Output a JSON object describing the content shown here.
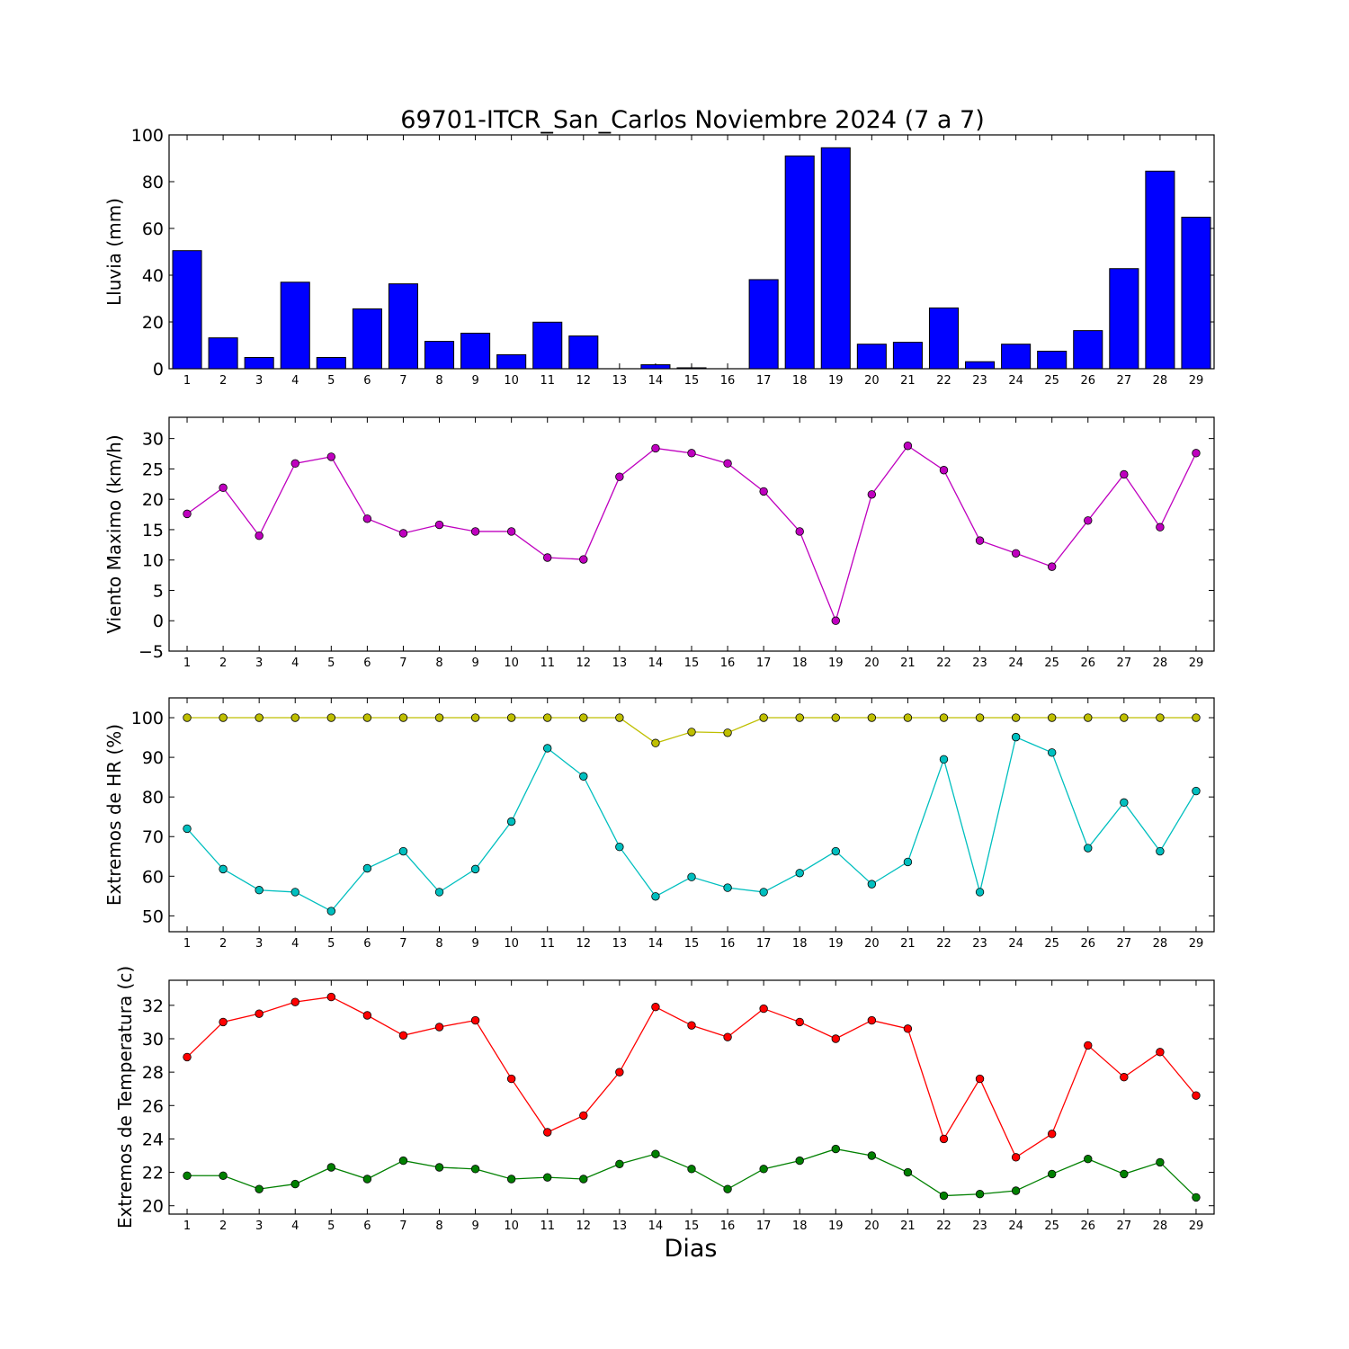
{
  "title": "69701-ITCR_San_Carlos Noviembre 2024  (7 a 7)",
  "xlabel": "Dias",
  "days": [
    1,
    2,
    3,
    4,
    5,
    6,
    7,
    8,
    9,
    10,
    11,
    12,
    13,
    14,
    15,
    16,
    17,
    18,
    19,
    20,
    21,
    22,
    23,
    24,
    25,
    26,
    27,
    28,
    29
  ],
  "chart_data": [
    {
      "type": "bar",
      "ylabel": "Lluvia (mm)",
      "ylim": [
        0,
        100
      ],
      "yticks": [
        0,
        20,
        40,
        60,
        80,
        100
      ],
      "categories": [
        1,
        2,
        3,
        4,
        5,
        6,
        7,
        8,
        9,
        10,
        11,
        12,
        13,
        14,
        15,
        16,
        17,
        18,
        19,
        20,
        21,
        22,
        23,
        24,
        25,
        26,
        27,
        28,
        29
      ],
      "series": [
        {
          "color": "#0000ff",
          "values": [
            50.5,
            13.2,
            4.8,
            37.0,
            4.8,
            25.6,
            36.3,
            11.7,
            15.2,
            6.0,
            19.9,
            14.0,
            0.0,
            1.7,
            0.4,
            0.0,
            38.1,
            91.0,
            94.5,
            10.5,
            11.3,
            26.0,
            3.0,
            10.5,
            7.5,
            16.3,
            42.8,
            84.5,
            64.8
          ]
        }
      ]
    },
    {
      "type": "line",
      "ylabel": "Viento Maximo (km/h)",
      "ylim": [
        -5,
        33.5
      ],
      "yticks": [
        -5,
        0,
        5,
        10,
        15,
        20,
        25,
        30
      ],
      "x": [
        1,
        2,
        3,
        4,
        5,
        6,
        7,
        8,
        9,
        10,
        11,
        12,
        13,
        14,
        15,
        16,
        17,
        18,
        19,
        20,
        21,
        22,
        23,
        24,
        25,
        26,
        27,
        28,
        29
      ],
      "series": [
        {
          "color": "#bf00bf",
          "values": [
            17.6,
            21.9,
            14.0,
            25.9,
            27.0,
            16.8,
            14.4,
            15.8,
            14.7,
            14.7,
            10.4,
            10.1,
            23.7,
            28.4,
            27.6,
            25.9,
            21.3,
            14.7,
            0.0,
            20.8,
            28.8,
            24.8,
            13.2,
            11.1,
            8.9,
            16.5,
            24.1,
            15.4,
            27.6
          ]
        }
      ]
    },
    {
      "type": "line",
      "ylabel": "Extremos de HR (%)",
      "ylim": [
        46,
        105
      ],
      "yticks": [
        50,
        60,
        70,
        80,
        90,
        100
      ],
      "x": [
        1,
        2,
        3,
        4,
        5,
        6,
        7,
        8,
        9,
        10,
        11,
        12,
        13,
        14,
        15,
        16,
        17,
        18,
        19,
        20,
        21,
        22,
        23,
        24,
        25,
        26,
        27,
        28,
        29
      ],
      "series": [
        {
          "color": "#bfbf00",
          "values": [
            100,
            100,
            100,
            100,
            100,
            100,
            100,
            100,
            100,
            100,
            100,
            100,
            100,
            93.6,
            96.4,
            96.2,
            100,
            100,
            100,
            100,
            100,
            100,
            100,
            100,
            100,
            100,
            100,
            100,
            100
          ]
        },
        {
          "color": "#00bfbf",
          "values": [
            72.0,
            61.8,
            56.5,
            56.0,
            51.2,
            62.0,
            66.3,
            56.0,
            61.8,
            73.8,
            92.3,
            85.2,
            67.4,
            54.9,
            59.8,
            57.1,
            56.0,
            60.8,
            66.3,
            58.0,
            63.6,
            89.5,
            56.0,
            95.1,
            91.2,
            67.1,
            78.6,
            66.3,
            81.5
          ]
        }
      ]
    },
    {
      "type": "line",
      "ylabel": "Extremos de Temperatura (c)",
      "ylim": [
        19.5,
        33.5
      ],
      "yticks": [
        20,
        22,
        24,
        26,
        28,
        30,
        32
      ],
      "x": [
        1,
        2,
        3,
        4,
        5,
        6,
        7,
        8,
        9,
        10,
        11,
        12,
        13,
        14,
        15,
        16,
        17,
        18,
        19,
        20,
        21,
        22,
        23,
        24,
        25,
        26,
        27,
        28,
        29
      ],
      "series": [
        {
          "color": "#ff0000",
          "values": [
            28.9,
            31.0,
            31.5,
            32.2,
            32.5,
            31.4,
            30.2,
            30.7,
            31.1,
            27.6,
            24.4,
            25.4,
            28.0,
            31.9,
            30.8,
            30.1,
            31.8,
            31.0,
            30.0,
            31.1,
            30.6,
            24.0,
            27.6,
            22.9,
            24.3,
            29.6,
            27.7,
            29.2,
            26.6
          ]
        },
        {
          "color": "#008000",
          "values": [
            21.8,
            21.8,
            21.0,
            21.3,
            22.3,
            21.6,
            22.7,
            22.3,
            22.2,
            21.6,
            21.7,
            21.6,
            22.5,
            23.1,
            22.2,
            21.0,
            22.2,
            22.7,
            23.4,
            23.0,
            22.0,
            20.6,
            20.7,
            20.9,
            21.9,
            22.8,
            21.9,
            22.6,
            20.5
          ]
        }
      ]
    }
  ]
}
